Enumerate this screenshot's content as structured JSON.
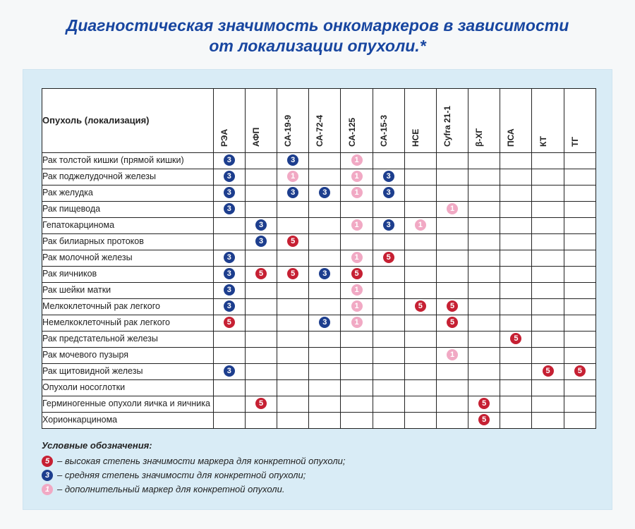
{
  "title": "Диагностическая значимость онкомаркеров в зависимости от локализации опухоли.*",
  "header_label": "Опухоль (локализация)",
  "columns": [
    "РЭА",
    "АФП",
    "СА-19-9",
    "СА-72-4",
    "СА-125",
    "СА-15-3",
    "НСЕ",
    "Cyfra 21-1",
    "β-ХГ",
    "ПСА",
    "КТ",
    "ТГ"
  ],
  "levels": {
    "high": {
      "class": "dot-high",
      "glyph": "5"
    },
    "med": {
      "class": "dot-med",
      "glyph": "3"
    },
    "low": {
      "class": "dot-low",
      "glyph": "1"
    }
  },
  "rows": [
    {
      "label": "Рак толстой кишки (прямой кишки)",
      "cells": [
        "med",
        "",
        "med",
        "",
        "low",
        "",
        "",
        "",
        "",
        "",
        "",
        ""
      ]
    },
    {
      "label": "Рак поджелудочной железы",
      "cells": [
        "med",
        "",
        "low",
        "",
        "low",
        "med",
        "",
        "",
        "",
        "",
        "",
        ""
      ]
    },
    {
      "label": "Рак желудка",
      "cells": [
        "med",
        "",
        "med",
        "med",
        "low",
        "med",
        "",
        "",
        "",
        "",
        "",
        ""
      ]
    },
    {
      "label": "Рак пищевода",
      "cells": [
        "med",
        "",
        "",
        "",
        "",
        "",
        "",
        "low",
        "",
        "",
        "",
        ""
      ]
    },
    {
      "label": "Гепатокарцинома",
      "cells": [
        "",
        "med",
        "",
        "",
        "low",
        "med",
        "low",
        "",
        "",
        "",
        "",
        ""
      ]
    },
    {
      "label": "Рак билиарных протоков",
      "cells": [
        "",
        "med",
        "high",
        "",
        "",
        "",
        "",
        "",
        "",
        "",
        "",
        ""
      ]
    },
    {
      "label": "Рак молочной железы",
      "cells": [
        "med",
        "",
        "",
        "",
        "low",
        "high",
        "",
        "",
        "",
        "",
        "",
        ""
      ]
    },
    {
      "label": "Рак яичников",
      "cells": [
        "med",
        "high",
        "high",
        "med",
        "high",
        "",
        "",
        "",
        "",
        "",
        "",
        ""
      ]
    },
    {
      "label": "Рак шейки матки",
      "cells": [
        "med",
        "",
        "",
        "",
        "low",
        "",
        "",
        "",
        "",
        "",
        "",
        ""
      ]
    },
    {
      "label": "Мелкоклеточный рак легкого",
      "cells": [
        "med",
        "",
        "",
        "",
        "low",
        "",
        "high",
        "high",
        "",
        "",
        "",
        ""
      ]
    },
    {
      "label": "Немелкоклеточный рак легкого",
      "cells": [
        "high",
        "",
        "",
        "med",
        "low",
        "",
        "",
        "high",
        "",
        "",
        "",
        ""
      ]
    },
    {
      "label": "Рак предстательной железы",
      "cells": [
        "",
        "",
        "",
        "",
        "",
        "",
        "",
        "",
        "",
        "high",
        "",
        ""
      ]
    },
    {
      "label": "Рак мочевого пузыря",
      "cells": [
        "",
        "",
        "",
        "",
        "",
        "",
        "",
        "low",
        "",
        "",
        "",
        ""
      ]
    },
    {
      "label": "Рак щитовидной железы",
      "cells": [
        "med",
        "",
        "",
        "",
        "",
        "",
        "",
        "",
        "",
        "",
        "high",
        "high"
      ]
    },
    {
      "label": "Опухоли носоглотки",
      "cells": [
        "",
        "",
        "",
        "",
        "",
        "",
        "",
        "",
        "",
        "",
        "",
        ""
      ]
    },
    {
      "label": "Герминогенные опухоли яичка и яичника",
      "cells": [
        "",
        "high",
        "",
        "",
        "",
        "",
        "",
        "",
        "high",
        "",
        "",
        ""
      ]
    },
    {
      "label": "Хорионкарцинома",
      "cells": [
        "",
        "",
        "",
        "",
        "",
        "",
        "",
        "",
        "high",
        "",
        "",
        ""
      ]
    }
  ],
  "legend": {
    "title": "Условные обозначения:",
    "items": [
      {
        "level": "high",
        "text": "– высокая степень значимости маркера для конкретной опухоли;"
      },
      {
        "level": "med",
        "text": "– средняя степень значимости для конкретной опухоли;"
      },
      {
        "level": "low",
        "text": "– дополнительный маркер для конкретной опухоли."
      }
    ]
  },
  "colors": {
    "title": "#1846a0",
    "card_bg": "#d9ecf6",
    "high": "#c62033",
    "med": "#1d3e8e",
    "low": "#f1a9c4",
    "border": "#222222",
    "page_bg": "#f6f8f9"
  }
}
